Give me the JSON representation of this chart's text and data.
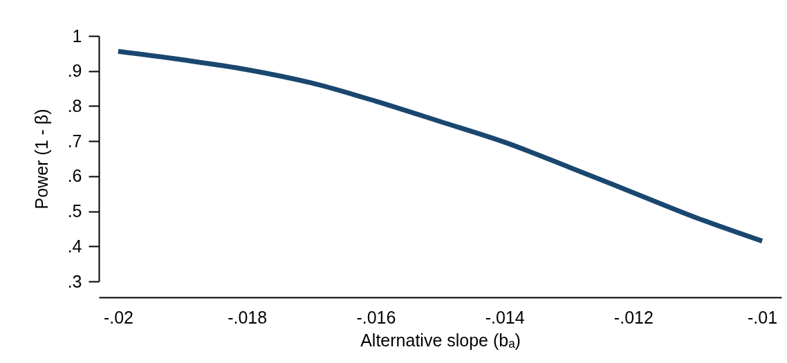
{
  "chart_data": {
    "type": "line",
    "xlabel": "Alternative slope (bₐ)",
    "ylabel": "Power (1 - β)",
    "x": [
      -0.02,
      -0.019,
      -0.018,
      -0.017,
      -0.016,
      -0.015,
      -0.014,
      -0.013,
      -0.012,
      -0.011,
      -0.01
    ],
    "series": [
      {
        "color": "#1a476f",
        "values": [
          0.956,
          0.932,
          0.904,
          0.866,
          0.814,
          0.756,
          0.697,
          0.626,
          0.553,
          0.48,
          0.415
        ]
      }
    ],
    "xlim": [
      -0.0203,
      -0.0097
    ],
    "xticks": [
      {
        "value": -0.02,
        "label": "-.02"
      },
      {
        "value": -0.018,
        "label": "-.018"
      },
      {
        "value": -0.016,
        "label": "-.016"
      },
      {
        "value": -0.014,
        "label": "-.014"
      },
      {
        "value": -0.012,
        "label": "-.012"
      },
      {
        "value": -0.01,
        "label": "-.01"
      }
    ],
    "ylim": [
      0.3,
      1
    ],
    "yticks": [
      {
        "value": 0.3,
        "label": ".3"
      },
      {
        "value": 0.4,
        "label": ".4"
      },
      {
        "value": 0.5,
        "label": ".5"
      },
      {
        "value": 0.6,
        "label": ".6"
      },
      {
        "value": 0.7,
        "label": ".7"
      },
      {
        "value": 0.8,
        "label": ".8"
      },
      {
        "value": 0.9,
        "label": ".9"
      },
      1
    ],
    "grid": false
  }
}
